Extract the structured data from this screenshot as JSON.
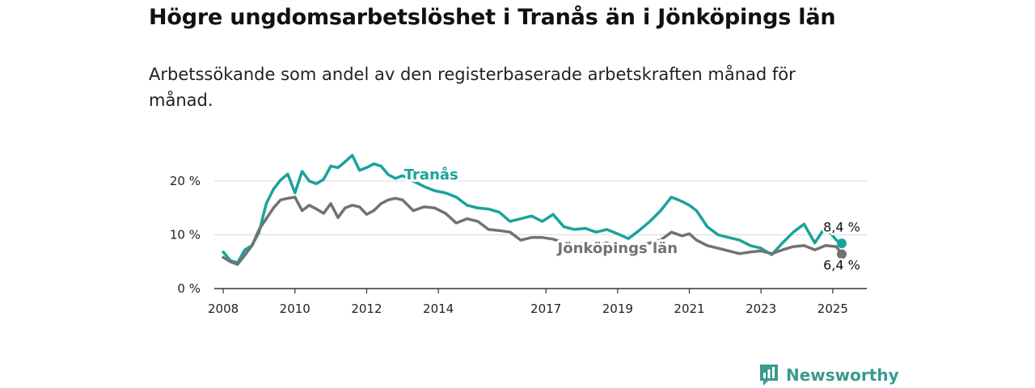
{
  "title": "Högre ungdomsarbetslöshet i Tranås än i Jönköpings län",
  "subtitle": "Arbetssökande som andel av den registerbaserade arbetskraften månad för månad.",
  "brand": {
    "name": "Newsworthy",
    "icon": "bar-chart-logo-icon",
    "color": "#3a9a8f"
  },
  "chart_data": {
    "type": "line",
    "title": "Högre ungdomsarbetslöshet i Tranås än i Jönköpings län",
    "subtitle": "Arbetssökande som andel av den registerbaserade arbetskraften månad för månad.",
    "xlabel": "",
    "ylabel": "",
    "x_ticks": [
      "2008",
      "2010",
      "2012",
      "2014",
      "2017",
      "2019",
      "2021",
      "2023",
      "2025"
    ],
    "y_ticks": [
      "0 %",
      "10 %",
      "20 %"
    ],
    "xlim": [
      2007.9,
      2025.4
    ],
    "ylim": [
      0,
      20
    ],
    "grid": true,
    "legend": "inline labels",
    "end_labels": {
      "Tranås": "8,4 %",
      "Jönköpings län": "6,4 %"
    },
    "series": [
      {
        "name": "Tranås",
        "color": "#1aa39a",
        "x": [
          2008.0,
          2008.2,
          2008.4,
          2008.6,
          2008.8,
          2009.0,
          2009.2,
          2009.4,
          2009.6,
          2009.8,
          2010.0,
          2010.2,
          2010.4,
          2010.6,
          2010.8,
          2011.0,
          2011.2,
          2011.4,
          2011.6,
          2011.8,
          2012.0,
          2012.2,
          2012.4,
          2012.6,
          2012.8,
          2013.0,
          2013.3,
          2013.6,
          2013.9,
          2014.2,
          2014.5,
          2014.8,
          2015.1,
          2015.4,
          2015.7,
          2016.0,
          2016.3,
          2016.6,
          2016.9,
          2017.2,
          2017.5,
          2017.8,
          2018.1,
          2018.4,
          2018.7,
          2019.0,
          2019.3,
          2019.6,
          2019.9,
          2020.2,
          2020.5,
          2020.8,
          2021.0,
          2021.2,
          2021.5,
          2021.8,
          2022.1,
          2022.4,
          2022.7,
          2023.0,
          2023.3,
          2023.6,
          2023.9,
          2024.2,
          2024.5,
          2024.8,
          2025.1,
          2025.25
        ],
        "values": [
          6.8,
          5.2,
          4.8,
          7.2,
          8.0,
          10.5,
          15.8,
          18.5,
          20.2,
          21.3,
          17.8,
          21.8,
          20.0,
          19.5,
          20.3,
          22.8,
          22.5,
          23.6,
          24.8,
          22.0,
          22.5,
          23.2,
          22.8,
          21.2,
          20.5,
          21.0,
          20.0,
          19.0,
          18.2,
          17.8,
          17.0,
          15.5,
          15.0,
          14.8,
          14.2,
          12.5,
          13.0,
          13.5,
          12.5,
          13.8,
          11.5,
          11.0,
          11.2,
          10.5,
          11.0,
          10.2,
          9.3,
          10.8,
          12.5,
          14.5,
          17.0,
          16.2,
          15.5,
          14.5,
          11.5,
          10.0,
          9.5,
          9.0,
          8.0,
          7.5,
          6.3,
          8.5,
          10.5,
          12.0,
          8.5,
          11.5,
          9.0,
          8.4
        ]
      },
      {
        "name": "Jönköpings län",
        "color": "#727272",
        "x": [
          2008.0,
          2008.2,
          2008.4,
          2008.6,
          2008.8,
          2009.0,
          2009.2,
          2009.4,
          2009.6,
          2009.8,
          2010.0,
          2010.2,
          2010.4,
          2010.6,
          2010.8,
          2011.0,
          2011.2,
          2011.4,
          2011.6,
          2011.8,
          2012.0,
          2012.2,
          2012.4,
          2012.6,
          2012.8,
          2013.0,
          2013.3,
          2013.6,
          2013.9,
          2014.2,
          2014.5,
          2014.8,
          2015.1,
          2015.4,
          2015.7,
          2016.0,
          2016.3,
          2016.6,
          2016.9,
          2017.2,
          2017.5,
          2017.8,
          2018.1,
          2018.4,
          2018.7,
          2019.0,
          2019.3,
          2019.6,
          2019.9,
          2020.2,
          2020.5,
          2020.8,
          2021.0,
          2021.2,
          2021.5,
          2021.8,
          2022.1,
          2022.4,
          2022.7,
          2023.0,
          2023.3,
          2023.6,
          2023.9,
          2024.2,
          2024.5,
          2024.8,
          2025.1,
          2025.25
        ],
        "values": [
          5.8,
          5.0,
          4.5,
          6.2,
          8.0,
          11.0,
          13.0,
          15.0,
          16.5,
          16.8,
          17.0,
          14.5,
          15.5,
          14.8,
          14.0,
          15.8,
          13.2,
          15.0,
          15.5,
          15.2,
          13.8,
          14.5,
          15.8,
          16.5,
          16.8,
          16.5,
          14.5,
          15.2,
          15.0,
          14.0,
          12.2,
          13.0,
          12.5,
          11.0,
          10.8,
          10.5,
          9.0,
          9.5,
          9.5,
          9.2,
          8.5,
          8.0,
          8.5,
          8.0,
          8.5,
          7.8,
          7.5,
          7.8,
          8.5,
          9.0,
          10.5,
          9.8,
          10.2,
          9.0,
          8.0,
          7.5,
          7.0,
          6.5,
          6.8,
          7.0,
          6.5,
          7.2,
          7.8,
          8.0,
          7.2,
          8.0,
          7.8,
          6.4
        ]
      }
    ]
  }
}
